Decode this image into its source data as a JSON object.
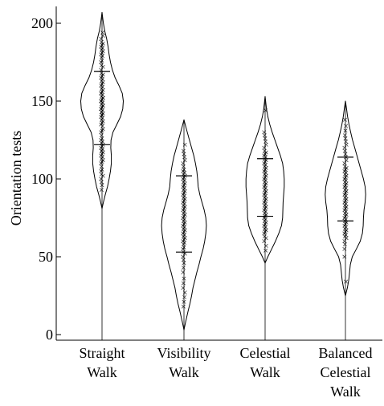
{
  "chart_data": {
    "type": "violin",
    "ylabel": "Orientation tests",
    "xlabel": "",
    "ylim": [
      0,
      210
    ],
    "yticks": [
      0,
      50,
      100,
      150,
      200
    ],
    "grid": false,
    "colors": {
      "outline": "#000000",
      "points": "#000000",
      "axis": "#000000"
    },
    "categories": [
      "Straight Walk",
      "Visibility Walk",
      "Celestial Walk",
      "Balanced Celestial Walk"
    ],
    "category_lines": [
      [
        "Straight",
        "Walk"
      ],
      [
        "Visibility",
        "Walk"
      ],
      [
        "Celestial",
        "Walk"
      ],
      [
        "Balanced",
        "Celestial",
        "Walk"
      ]
    ],
    "series": [
      {
        "name": "Straight Walk",
        "range": [
          81,
          207
        ],
        "quartiles": [
          122,
          169
        ],
        "density": [
          [
            81,
            0.0
          ],
          [
            85,
            0.05
          ],
          [
            90,
            0.12
          ],
          [
            95,
            0.2
          ],
          [
            100,
            0.26
          ],
          [
            105,
            0.31
          ],
          [
            110,
            0.34
          ],
          [
            115,
            0.34
          ],
          [
            120,
            0.32
          ],
          [
            125,
            0.33
          ],
          [
            130,
            0.4
          ],
          [
            135,
            0.54
          ],
          [
            140,
            0.68
          ],
          [
            145,
            0.76
          ],
          [
            150,
            0.78
          ],
          [
            155,
            0.74
          ],
          [
            160,
            0.62
          ],
          [
            165,
            0.48
          ],
          [
            170,
            0.38
          ],
          [
            175,
            0.31
          ],
          [
            180,
            0.26
          ],
          [
            185,
            0.22
          ],
          [
            190,
            0.17
          ],
          [
            195,
            0.1
          ],
          [
            200,
            0.05
          ],
          [
            207,
            0.0
          ]
        ],
        "points": [
          93,
          96,
          98,
          100,
          102,
          103,
          105,
          106,
          108,
          110,
          111,
          112,
          113,
          114,
          115,
          116,
          117,
          118,
          118,
          119,
          120,
          121,
          122,
          123,
          124,
          125,
          126,
          128,
          130,
          131,
          132,
          134,
          135,
          136,
          137,
          138,
          139,
          140,
          141,
          141,
          142,
          143,
          143,
          144,
          145,
          145,
          146,
          147,
          147,
          148,
          149,
          149,
          150,
          150,
          151,
          152,
          152,
          153,
          154,
          155,
          155,
          156,
          157,
          158,
          159,
          160,
          161,
          162,
          163,
          164,
          165,
          166,
          167,
          168,
          170,
          172,
          173,
          175,
          176,
          178,
          179,
          180,
          181,
          182,
          183,
          184,
          185,
          186,
          187,
          188,
          190,
          192,
          194
        ]
      },
      {
        "name": "Visibility Walk",
        "range": [
          3,
          138
        ],
        "quartiles": [
          53,
          102
        ],
        "density": [
          [
            3,
            0.0
          ],
          [
            8,
            0.06
          ],
          [
            15,
            0.15
          ],
          [
            20,
            0.22
          ],
          [
            25,
            0.28
          ],
          [
            30,
            0.33
          ],
          [
            35,
            0.4
          ],
          [
            40,
            0.47
          ],
          [
            45,
            0.55
          ],
          [
            50,
            0.62
          ],
          [
            55,
            0.7
          ],
          [
            60,
            0.76
          ],
          [
            65,
            0.8
          ],
          [
            70,
            0.82
          ],
          [
            75,
            0.8
          ],
          [
            80,
            0.74
          ],
          [
            85,
            0.66
          ],
          [
            90,
            0.58
          ],
          [
            95,
            0.52
          ],
          [
            100,
            0.5
          ],
          [
            105,
            0.47
          ],
          [
            110,
            0.42
          ],
          [
            115,
            0.36
          ],
          [
            120,
            0.28
          ],
          [
            125,
            0.2
          ],
          [
            130,
            0.12
          ],
          [
            134,
            0.06
          ],
          [
            138,
            0.0
          ]
        ],
        "points": [
          18,
          21,
          24,
          27,
          30,
          33,
          36,
          40,
          43,
          46,
          48,
          50,
          52,
          53,
          55,
          56,
          58,
          59,
          60,
          61,
          62,
          63,
          64,
          65,
          66,
          67,
          68,
          69,
          70,
          71,
          72,
          73,
          74,
          75,
          76,
          77,
          78,
          79,
          80,
          81,
          82,
          83,
          84,
          85,
          86,
          87,
          88,
          89,
          90,
          91,
          92,
          93,
          94,
          95,
          96,
          97,
          98,
          99,
          100,
          101,
          102,
          103,
          104,
          105,
          106,
          108,
          110,
          112,
          114,
          116,
          118,
          122
        ]
      },
      {
        "name": "Celestial Walk",
        "range": [
          46,
          153
        ],
        "quartiles": [
          76,
          113
        ],
        "density": [
          [
            46,
            0.0
          ],
          [
            50,
            0.1
          ],
          [
            55,
            0.24
          ],
          [
            60,
            0.38
          ],
          [
            65,
            0.5
          ],
          [
            70,
            0.6
          ],
          [
            75,
            0.64
          ],
          [
            80,
            0.65
          ],
          [
            85,
            0.66
          ],
          [
            90,
            0.68
          ],
          [
            95,
            0.7
          ],
          [
            100,
            0.7
          ],
          [
            105,
            0.68
          ],
          [
            110,
            0.64
          ],
          [
            115,
            0.56
          ],
          [
            120,
            0.46
          ],
          [
            125,
            0.36
          ],
          [
            130,
            0.26
          ],
          [
            135,
            0.17
          ],
          [
            140,
            0.1
          ],
          [
            145,
            0.05
          ],
          [
            153,
            0.0
          ]
        ],
        "points": [
          54,
          57,
          60,
          62,
          63,
          65,
          66,
          67,
          68,
          69,
          70,
          71,
          72,
          73,
          74,
          75,
          76,
          77,
          78,
          79,
          80,
          81,
          82,
          83,
          84,
          85,
          86,
          87,
          88,
          89,
          90,
          91,
          92,
          93,
          94,
          95,
          96,
          97,
          98,
          99,
          100,
          101,
          102,
          103,
          104,
          105,
          106,
          107,
          108,
          109,
          110,
          111,
          112,
          113,
          114,
          115,
          116,
          117,
          118,
          120,
          122,
          124,
          126,
          128,
          130,
          144
        ]
      },
      {
        "name": "Balanced Celestial Walk",
        "range": [
          25,
          150
        ],
        "quartiles": [
          73,
          114
        ],
        "density": [
          [
            25,
            0.0
          ],
          [
            30,
            0.07
          ],
          [
            35,
            0.12
          ],
          [
            40,
            0.15
          ],
          [
            45,
            0.18
          ],
          [
            50,
            0.25
          ],
          [
            55,
            0.4
          ],
          [
            60,
            0.54
          ],
          [
            65,
            0.62
          ],
          [
            70,
            0.65
          ],
          [
            75,
            0.66
          ],
          [
            80,
            0.68
          ],
          [
            85,
            0.72
          ],
          [
            90,
            0.74
          ],
          [
            95,
            0.72
          ],
          [
            100,
            0.66
          ],
          [
            105,
            0.58
          ],
          [
            110,
            0.5
          ],
          [
            115,
            0.42
          ],
          [
            120,
            0.34
          ],
          [
            125,
            0.26
          ],
          [
            130,
            0.19
          ],
          [
            135,
            0.13
          ],
          [
            140,
            0.08
          ],
          [
            145,
            0.04
          ],
          [
            150,
            0.0
          ]
        ],
        "points": [
          34,
          50,
          55,
          58,
          60,
          62,
          63,
          64,
          65,
          66,
          67,
          68,
          69,
          70,
          71,
          72,
          73,
          74,
          75,
          76,
          77,
          78,
          79,
          80,
          81,
          82,
          83,
          84,
          85,
          86,
          87,
          88,
          89,
          90,
          91,
          92,
          93,
          94,
          95,
          96,
          97,
          98,
          99,
          100,
          101,
          102,
          103,
          104,
          105,
          106,
          107,
          108,
          110,
          112,
          114,
          116,
          118,
          120,
          122,
          124,
          126,
          128,
          131,
          134,
          138
        ]
      }
    ]
  }
}
